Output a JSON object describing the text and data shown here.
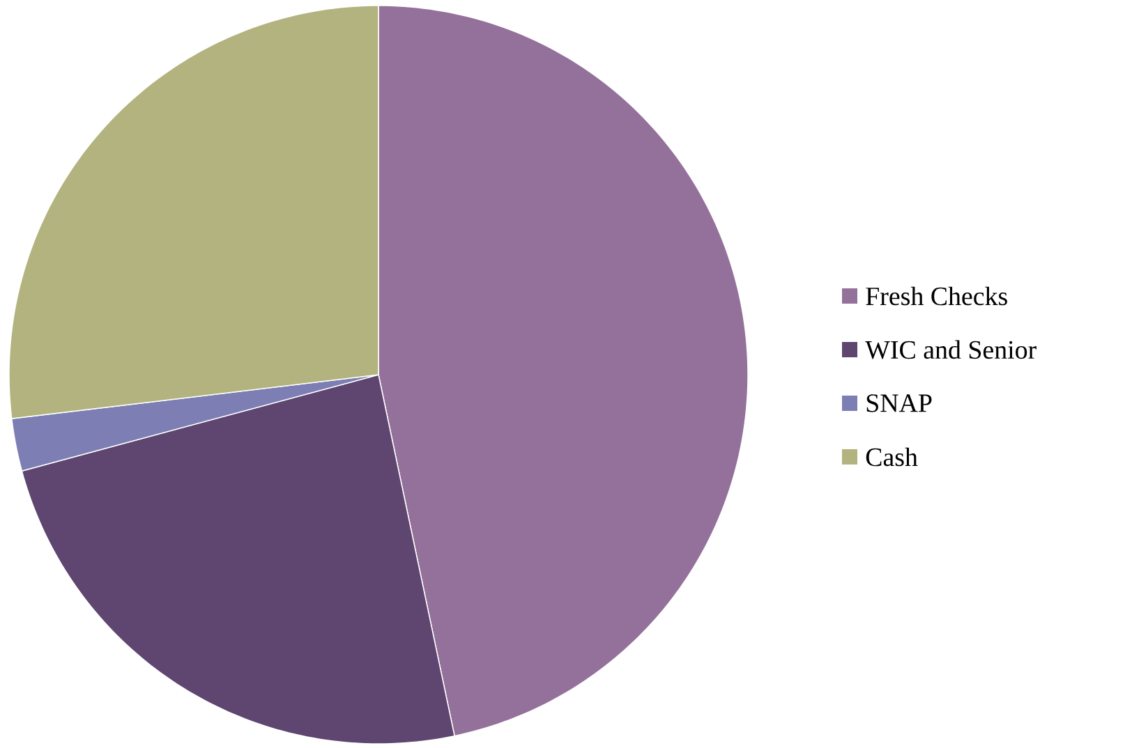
{
  "chart_data": {
    "type": "pie",
    "categories": [
      "Fresh Checks",
      "WIC and Senior",
      "SNAP",
      "Cash"
    ],
    "values": [
      46.7,
      24.1,
      2.3,
      26.9
    ],
    "colors": [
      "#94719a",
      "#5e4670",
      "#7d7eb3",
      "#b2b37e"
    ],
    "legend": "right"
  }
}
